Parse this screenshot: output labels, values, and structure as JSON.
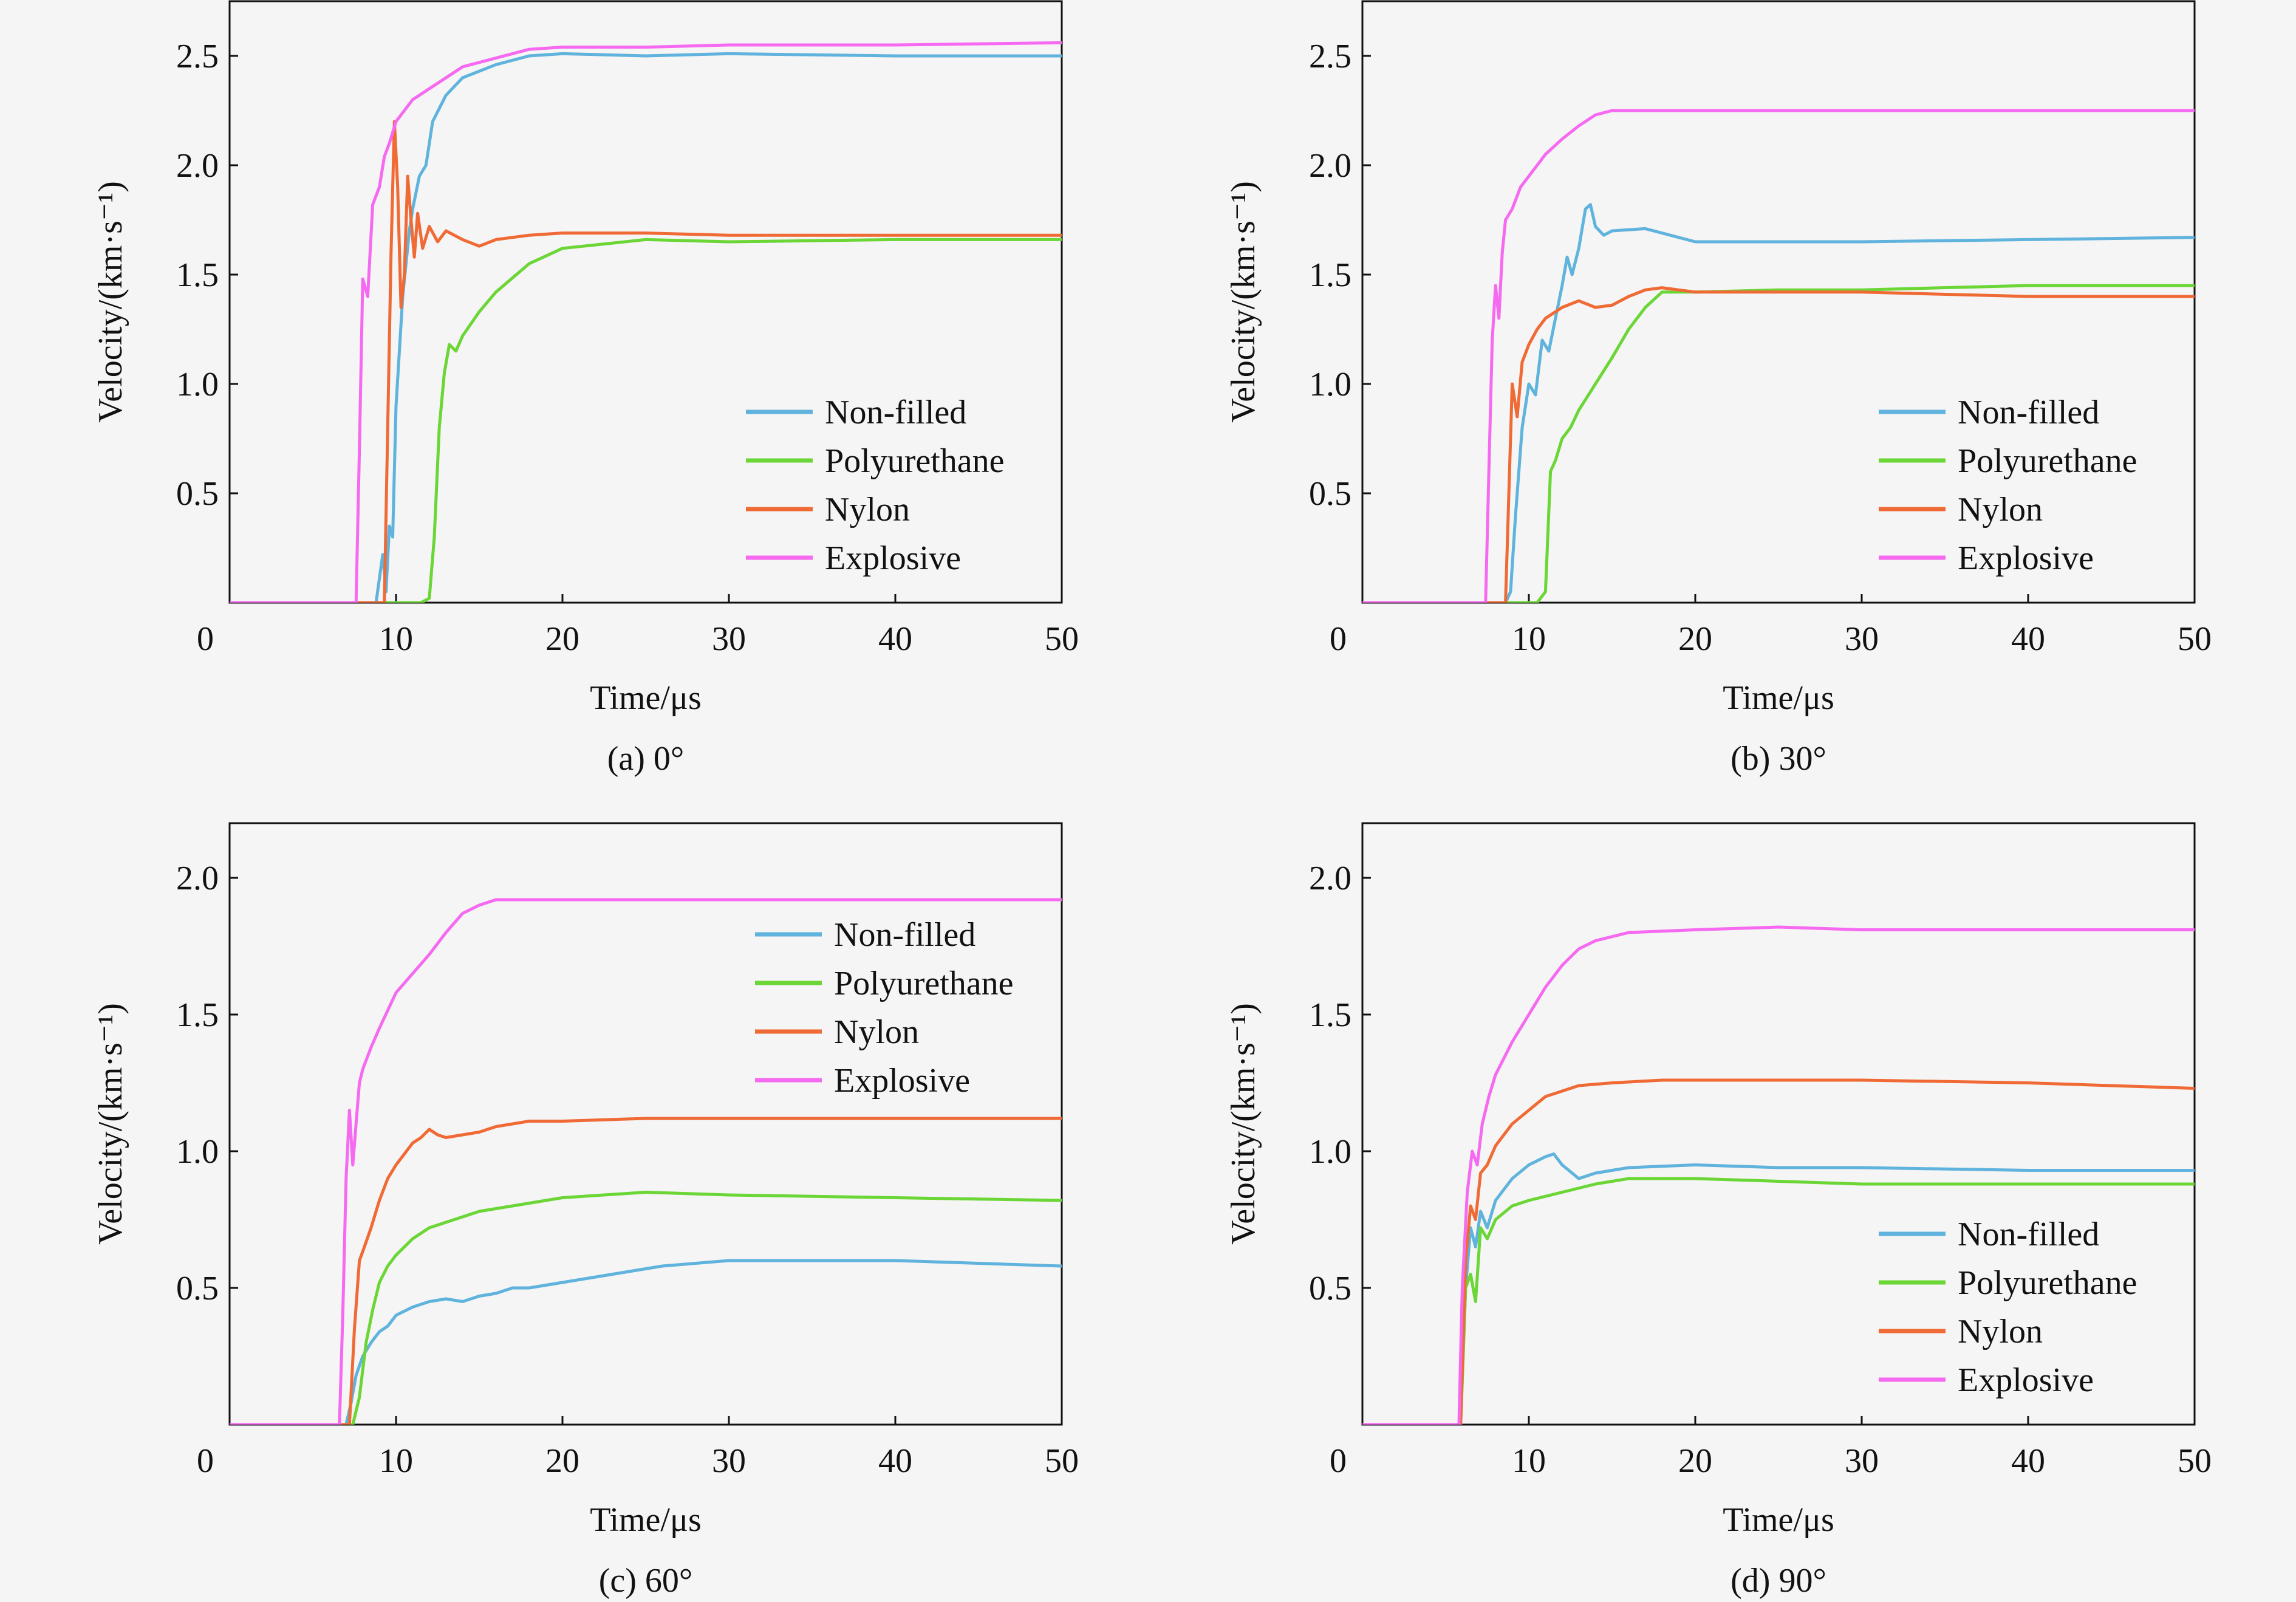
{
  "chart_data": [
    {
      "type": "line",
      "caption": "(a) 0°",
      "xlabel": "Time/μs",
      "ylabel": "Velocity/(km·s⁻¹)",
      "xlim": [
        0,
        50
      ],
      "ylim": [
        0,
        2.75
      ],
      "xticks": [
        "0",
        "10",
        "20",
        "30",
        "40",
        "50"
      ],
      "yticks": [
        "0.5",
        "1.0",
        "1.5",
        "2.0",
        "2.5"
      ],
      "legend_position": "lower-right",
      "series": [
        {
          "name": "Non-filled",
          "color": "#5fb3dc",
          "x": [
            0,
            8.8,
            9.2,
            9.4,
            9.6,
            9.8,
            10.0,
            10.4,
            10.8,
            11.0,
            11.4,
            11.8,
            12.2,
            13,
            14,
            16,
            18,
            20,
            25,
            30,
            40,
            50
          ],
          "y": [
            0,
            0,
            0.22,
            0.05,
            0.35,
            0.3,
            0.9,
            1.4,
            1.7,
            1.8,
            1.95,
            2.0,
            2.2,
            2.32,
            2.4,
            2.46,
            2.5,
            2.51,
            2.5,
            2.51,
            2.5,
            2.5
          ]
        },
        {
          "name": "Polyurethane",
          "color": "#6bd636",
          "x": [
            0,
            11.5,
            12.0,
            12.3,
            12.6,
            12.9,
            13.2,
            13.6,
            14,
            15,
            16,
            18,
            20,
            25,
            30,
            40,
            50
          ],
          "y": [
            0,
            0,
            0.02,
            0.3,
            0.8,
            1.05,
            1.18,
            1.15,
            1.22,
            1.33,
            1.42,
            1.55,
            1.62,
            1.66,
            1.65,
            1.66,
            1.66
          ]
        },
        {
          "name": "Nylon",
          "color": "#f06a35",
          "x": [
            0,
            9.3,
            9.7,
            9.9,
            10.1,
            10.3,
            10.5,
            10.7,
            10.9,
            11.1,
            11.3,
            11.6,
            12,
            12.5,
            13,
            14,
            15,
            16,
            18,
            20,
            25,
            30,
            40,
            50
          ],
          "y": [
            0,
            0,
            1.6,
            2.2,
            1.9,
            1.35,
            1.5,
            1.95,
            1.75,
            1.58,
            1.78,
            1.62,
            1.72,
            1.65,
            1.7,
            1.66,
            1.63,
            1.66,
            1.68,
            1.69,
            1.69,
            1.68,
            1.68,
            1.68
          ]
        },
        {
          "name": "Explosive",
          "color": "#f56af0",
          "x": [
            0,
            7.6,
            7.8,
            8.0,
            8.3,
            8.6,
            9.0,
            9.3,
            9.6,
            10.0,
            11,
            12,
            13,
            14,
            16,
            18,
            20,
            25,
            30,
            40,
            50
          ],
          "y": [
            0,
            0,
            0.7,
            1.48,
            1.4,
            1.82,
            1.9,
            2.04,
            2.1,
            2.2,
            2.3,
            2.35,
            2.4,
            2.45,
            2.49,
            2.53,
            2.54,
            2.54,
            2.55,
            2.55,
            2.56
          ]
        }
      ]
    },
    {
      "type": "line",
      "caption": "(b) 30°",
      "xlabel": "Time/μs",
      "ylabel": "Velocity/(km·s⁻¹)",
      "xlim": [
        0,
        50
      ],
      "ylim": [
        0,
        2.75
      ],
      "xticks": [
        "0",
        "10",
        "20",
        "30",
        "40",
        "50"
      ],
      "yticks": [
        "0.5",
        "1.0",
        "1.5",
        "2.0",
        "2.5"
      ],
      "legend_position": "lower-right",
      "series": [
        {
          "name": "Non-filled",
          "color": "#5fb3dc",
          "x": [
            0,
            8.6,
            8.9,
            9.2,
            9.6,
            10.0,
            10.4,
            10.8,
            11.2,
            11.6,
            12.0,
            12.3,
            12.6,
            13.0,
            13.4,
            13.7,
            14.0,
            14.5,
            15,
            17,
            20,
            30,
            40,
            50
          ],
          "y": [
            0,
            0,
            0.05,
            0.4,
            0.8,
            1.0,
            0.95,
            1.2,
            1.15,
            1.3,
            1.45,
            1.58,
            1.5,
            1.62,
            1.8,
            1.82,
            1.72,
            1.68,
            1.7,
            1.71,
            1.65,
            1.65,
            1.66,
            1.67
          ]
        },
        {
          "name": "Polyurethane",
          "color": "#6bd636",
          "x": [
            0,
            10.5,
            11.0,
            11.3,
            11.6,
            12.0,
            12.5,
            13,
            14,
            15,
            16,
            17,
            18,
            19,
            20,
            25,
            30,
            40,
            50
          ],
          "y": [
            0,
            0,
            0.05,
            0.6,
            0.65,
            0.75,
            0.8,
            0.88,
            1.0,
            1.12,
            1.25,
            1.35,
            1.42,
            1.42,
            1.42,
            1.43,
            1.43,
            1.45,
            1.45
          ]
        },
        {
          "name": "Nylon",
          "color": "#f06a35",
          "x": [
            0,
            8.6,
            8.8,
            9.0,
            9.3,
            9.6,
            10.0,
            10.5,
            11,
            12,
            13,
            14,
            15,
            16,
            17,
            18,
            20,
            25,
            30,
            40,
            50
          ],
          "y": [
            0,
            0,
            0.5,
            1.0,
            0.85,
            1.1,
            1.18,
            1.25,
            1.3,
            1.35,
            1.38,
            1.35,
            1.36,
            1.4,
            1.43,
            1.44,
            1.42,
            1.42,
            1.42,
            1.4,
            1.4
          ]
        },
        {
          "name": "Explosive",
          "color": "#f56af0",
          "x": [
            0,
            7.4,
            7.6,
            7.8,
            8.0,
            8.2,
            8.4,
            8.6,
            9.0,
            9.5,
            10,
            11,
            12,
            13,
            14,
            15,
            20,
            30,
            40,
            50
          ],
          "y": [
            0,
            0,
            0.6,
            1.2,
            1.45,
            1.3,
            1.6,
            1.75,
            1.8,
            1.9,
            1.95,
            2.05,
            2.12,
            2.18,
            2.23,
            2.25,
            2.25,
            2.25,
            2.25,
            2.25
          ]
        }
      ]
    },
    {
      "type": "line",
      "caption": "(c) 60°",
      "xlabel": "Time/μs",
      "ylabel": "Velocity/(km·s⁻¹)",
      "xlim": [
        0,
        50
      ],
      "ylim": [
        0,
        2.2
      ],
      "xticks": [
        "0",
        "10",
        "20",
        "30",
        "40",
        "50"
      ],
      "yticks": [
        "0.5",
        "1.0",
        "1.5",
        "2.0"
      ],
      "legend_position": "upper-right",
      "series": [
        {
          "name": "Non-filled",
          "color": "#5fb3dc",
          "x": [
            0,
            7.0,
            7.3,
            7.6,
            8.0,
            8.5,
            9.0,
            9.5,
            10,
            11,
            12,
            13,
            14,
            15,
            16,
            17,
            18,
            20,
            22,
            24,
            26,
            28,
            30,
            35,
            40,
            45,
            50
          ],
          "y": [
            0,
            0,
            0.08,
            0.18,
            0.25,
            0.3,
            0.34,
            0.36,
            0.4,
            0.43,
            0.45,
            0.46,
            0.45,
            0.47,
            0.48,
            0.5,
            0.5,
            0.52,
            0.54,
            0.56,
            0.58,
            0.59,
            0.6,
            0.6,
            0.6,
            0.59,
            0.58
          ]
        },
        {
          "name": "Polyurethane",
          "color": "#6bd636",
          "x": [
            0,
            7.4,
            7.8,
            8.2,
            8.6,
            9.0,
            9.5,
            10,
            11,
            12,
            13,
            14,
            15,
            17,
            20,
            25,
            30,
            40,
            50
          ],
          "y": [
            0,
            0,
            0.1,
            0.3,
            0.42,
            0.52,
            0.58,
            0.62,
            0.68,
            0.72,
            0.74,
            0.76,
            0.78,
            0.8,
            0.83,
            0.85,
            0.84,
            0.83,
            0.82
          ]
        },
        {
          "name": "Nylon",
          "color": "#f06a35",
          "x": [
            0,
            7.2,
            7.5,
            7.8,
            8.1,
            8.5,
            9.0,
            9.5,
            10,
            11,
            11.5,
            12,
            12.5,
            13,
            14,
            15,
            16,
            18,
            20,
            25,
            30,
            40,
            50
          ],
          "y": [
            0,
            0,
            0.35,
            0.6,
            0.65,
            0.72,
            0.82,
            0.9,
            0.95,
            1.03,
            1.05,
            1.08,
            1.06,
            1.05,
            1.06,
            1.07,
            1.09,
            1.11,
            1.11,
            1.12,
            1.12,
            1.12,
            1.12
          ]
        },
        {
          "name": "Explosive",
          "color": "#f56af0",
          "x": [
            0,
            6.6,
            6.8,
            7.0,
            7.2,
            7.4,
            7.6,
            7.8,
            8.0,
            8.5,
            9.0,
            10,
            11,
            12,
            13,
            14,
            15,
            16,
            20,
            30,
            40,
            50
          ],
          "y": [
            0,
            0,
            0.4,
            0.9,
            1.15,
            0.95,
            1.1,
            1.25,
            1.3,
            1.38,
            1.45,
            1.58,
            1.65,
            1.72,
            1.8,
            1.87,
            1.9,
            1.92,
            1.92,
            1.92,
            1.92,
            1.92
          ]
        }
      ]
    },
    {
      "type": "line",
      "caption": "(d) 90°",
      "xlabel": "Time/μs",
      "ylabel": "Velocity/(km·s⁻¹)",
      "xlim": [
        0,
        50
      ],
      "ylim": [
        0,
        2.2
      ],
      "xticks": [
        "0",
        "10",
        "20",
        "30",
        "40",
        "50"
      ],
      "yticks": [
        "0.5",
        "1.0",
        "1.5",
        "2.0"
      ],
      "legend_position": "lower-right",
      "series": [
        {
          "name": "Non-filled",
          "color": "#5fb3dc",
          "x": [
            0,
            5.9,
            6.2,
            6.5,
            6.8,
            7.1,
            7.5,
            8,
            8.5,
            9,
            10,
            11,
            11.5,
            12,
            13,
            14,
            16,
            20,
            25,
            30,
            40,
            50
          ],
          "y": [
            0,
            0,
            0.5,
            0.72,
            0.65,
            0.78,
            0.72,
            0.82,
            0.86,
            0.9,
            0.95,
            0.98,
            0.99,
            0.95,
            0.9,
            0.92,
            0.94,
            0.95,
            0.94,
            0.94,
            0.93,
            0.93
          ]
        },
        {
          "name": "Polyurethane",
          "color": "#6bd636",
          "x": [
            0,
            5.9,
            6.2,
            6.5,
            6.8,
            7.1,
            7.5,
            8,
            9,
            10,
            12,
            14,
            16,
            20,
            30,
            40,
            50
          ],
          "y": [
            0,
            0,
            0.5,
            0.55,
            0.45,
            0.72,
            0.68,
            0.75,
            0.8,
            0.82,
            0.85,
            0.88,
            0.9,
            0.9,
            0.88,
            0.88,
            0.88
          ]
        },
        {
          "name": "Nylon",
          "color": "#f06a35",
          "x": [
            0,
            5.9,
            6.2,
            6.5,
            6.8,
            7.1,
            7.5,
            8,
            9,
            10,
            11,
            12,
            13,
            15,
            18,
            20,
            30,
            40,
            50
          ],
          "y": [
            0,
            0,
            0.6,
            0.8,
            0.75,
            0.92,
            0.95,
            1.02,
            1.1,
            1.15,
            1.2,
            1.22,
            1.24,
            1.25,
            1.26,
            1.26,
            1.26,
            1.25,
            1.23
          ]
        },
        {
          "name": "Explosive",
          "color": "#f56af0",
          "x": [
            0,
            5.8,
            6.0,
            6.3,
            6.6,
            6.9,
            7.2,
            7.6,
            8,
            9,
            10,
            11,
            12,
            13,
            14,
            16,
            20,
            25,
            30,
            40,
            50
          ],
          "y": [
            0,
            0,
            0.5,
            0.85,
            1.0,
            0.95,
            1.1,
            1.2,
            1.28,
            1.4,
            1.5,
            1.6,
            1.68,
            1.74,
            1.77,
            1.8,
            1.81,
            1.82,
            1.81,
            1.81,
            1.81
          ]
        }
      ]
    }
  ]
}
